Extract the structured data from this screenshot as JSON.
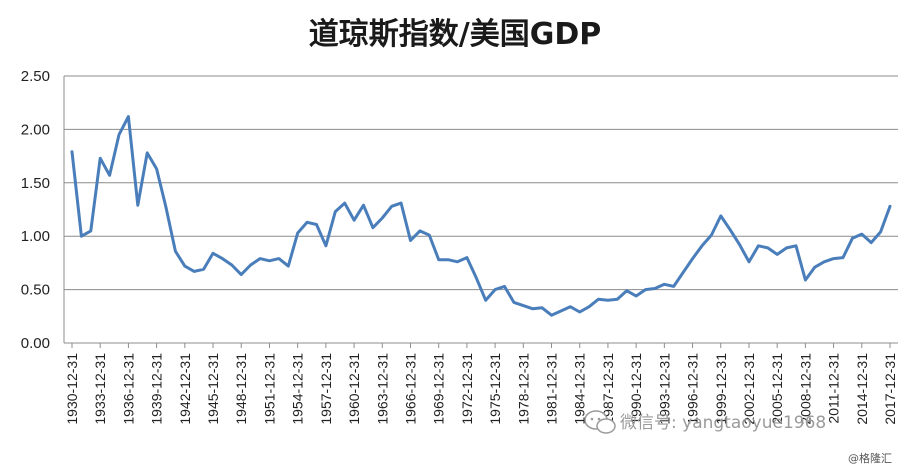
{
  "chart_data": {
    "type": "line",
    "title": "道琼斯指数/美国GDP",
    "xlabel": "",
    "ylabel": "",
    "ylim": [
      0,
      2.5
    ],
    "yticks": [
      "0.00",
      "0.50",
      "1.00",
      "1.50",
      "2.00",
      "2.50"
    ],
    "xtick_labels": [
      "1930-12-31",
      "1933-12-31",
      "1936-12-31",
      "1939-12-31",
      "1942-12-31",
      "1945-12-31",
      "1948-12-31",
      "1951-12-31",
      "1954-12-31",
      "1957-12-31",
      "1960-12-31",
      "1963-12-31",
      "1966-12-31",
      "1969-12-31",
      "1972-12-31",
      "1975-12-31",
      "1978-12-31",
      "1981-12-31",
      "1984-12-31",
      "1987-12-31",
      "1990-12-31",
      "1993-12-31",
      "1996-12-31",
      "1999-12-31",
      "2002-12-31",
      "2005-12-31",
      "2008-12-31",
      "2011-12-31",
      "2014-12-31",
      "2017-12-31"
    ],
    "grid": true,
    "legend": "none",
    "line_color": "#4a7ebb",
    "x_start_year": 1930,
    "series": [
      {
        "values": [
          1.79,
          1.0,
          1.05,
          1.73,
          1.57,
          1.95,
          2.12,
          1.29,
          1.78,
          1.63,
          1.27,
          0.86,
          0.72,
          0.67,
          0.69,
          0.84,
          0.79,
          0.73,
          0.64,
          0.73,
          0.79,
          0.77,
          0.79,
          0.72,
          1.03,
          1.13,
          1.11,
          0.91,
          1.23,
          1.31,
          1.15,
          1.29,
          1.08,
          1.17,
          1.28,
          1.31,
          0.96,
          1.05,
          1.01,
          0.78,
          0.78,
          0.76,
          0.8,
          0.61,
          0.4,
          0.5,
          0.53,
          0.38,
          0.35,
          0.32,
          0.33,
          0.26,
          0.3,
          0.34,
          0.29,
          0.34,
          0.41,
          0.4,
          0.41,
          0.49,
          0.44,
          0.5,
          0.51,
          0.55,
          0.53,
          0.66,
          0.79,
          0.91,
          1.01,
          1.19,
          1.06,
          0.92,
          0.76,
          0.91,
          0.89,
          0.83,
          0.89,
          0.91,
          0.59,
          0.71,
          0.76,
          0.79,
          0.8,
          0.98,
          1.02,
          0.94,
          1.04,
          1.28
        ]
      }
    ]
  },
  "watermark": {
    "wechat_text": "微信号: yangtaoyue1968",
    "source_text": "@格隆汇"
  }
}
